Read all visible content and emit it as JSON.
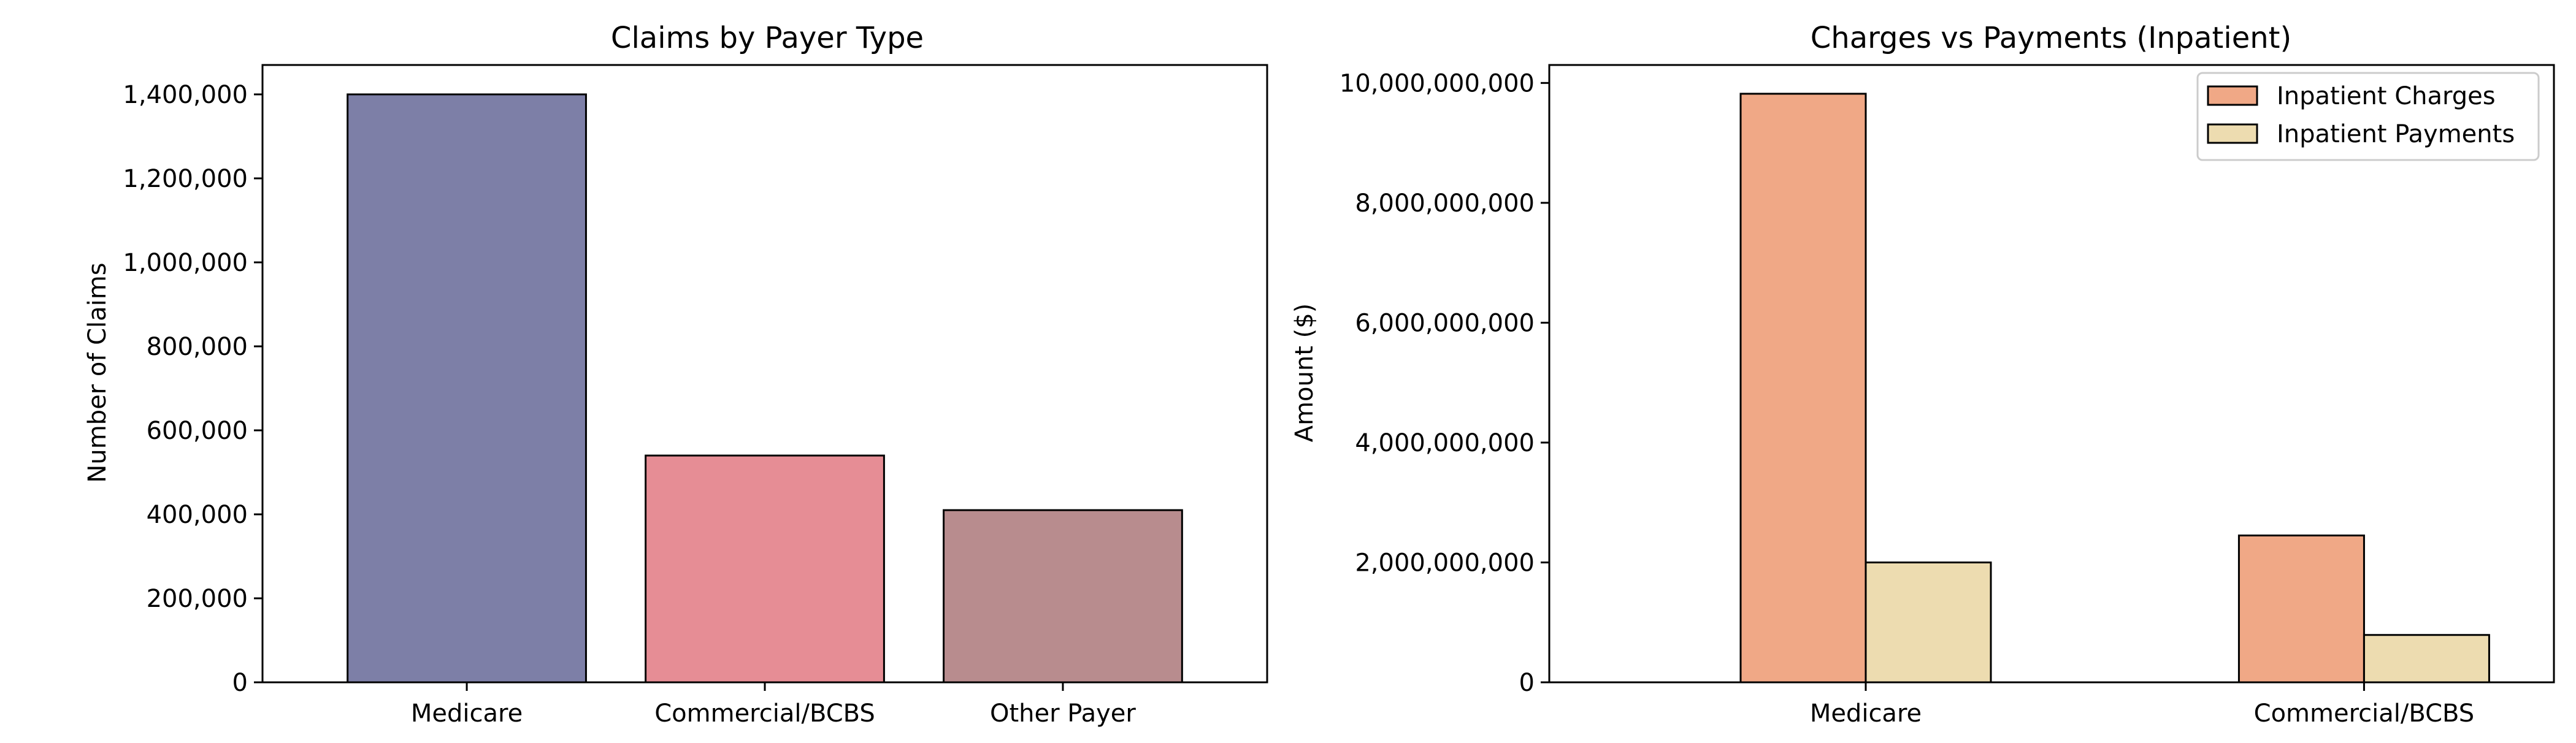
{
  "chart_data": [
    {
      "type": "bar",
      "title": "Claims by Payer Type",
      "xlabel": "",
      "ylabel": "Number of Claims",
      "categories": [
        "Medicare",
        "Commercial/BCBS",
        "Other Payer"
      ],
      "values": [
        1400000,
        540000,
        410000
      ],
      "colors": [
        "#7d7fa7",
        "#e68d95",
        "#b88c8e"
      ],
      "ylim": [
        0,
        1470000
      ],
      "yticks": [
        0,
        200000,
        400000,
        600000,
        800000,
        1000000,
        1200000,
        1400000
      ],
      "ytick_labels": [
        "0",
        "200,000",
        "400,000",
        "600,000",
        "800,000",
        "1,000,000",
        "1,200,000",
        "1,400,000"
      ],
      "grid": false
    },
    {
      "type": "bar",
      "title": "Charges vs Payments (Inpatient)",
      "xlabel": "",
      "ylabel": "Amount ($)",
      "categories": [
        "Medicare",
        "Commercial/BCBS"
      ],
      "series": [
        {
          "name": "Inpatient Charges",
          "values": [
            9820000000,
            2450000000
          ],
          "color": "#f0a886"
        },
        {
          "name": "Inpatient Payments",
          "values": [
            2000000000,
            790000000
          ],
          "color": "#eddcb0"
        }
      ],
      "ylim": [
        0,
        10300000000
      ],
      "yticks": [
        0,
        2000000000,
        4000000000,
        6000000000,
        8000000000,
        10000000000
      ],
      "ytick_labels": [
        "0",
        "2,000,000,000",
        "4,000,000,000",
        "6,000,000,000",
        "8,000,000,000",
        "10,000,000,000"
      ],
      "legend": "top-right",
      "grid": false
    }
  ]
}
